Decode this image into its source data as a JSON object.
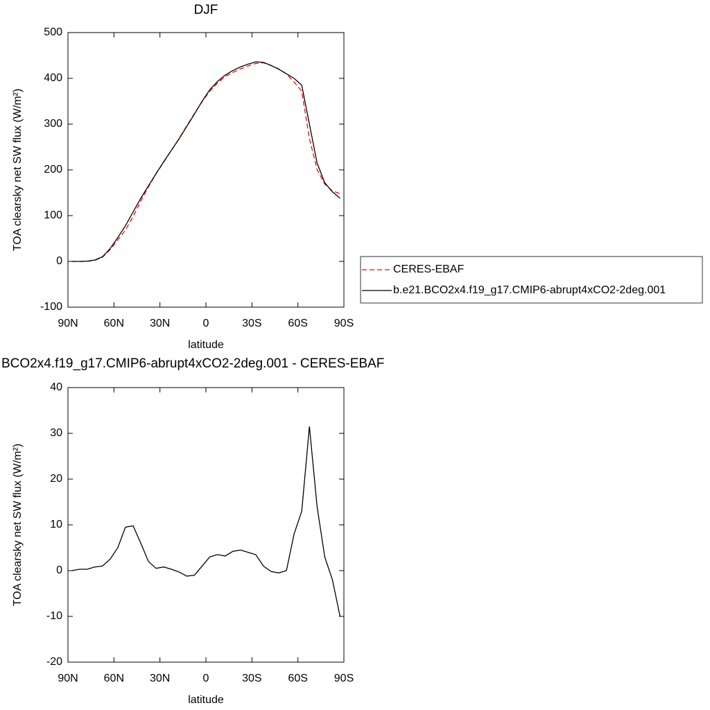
{
  "chart_data": [
    {
      "type": "line",
      "title": "DJF",
      "x_label": "latitude",
      "y_label": "TOA clearsky net SW flux (W/m²)",
      "x": [
        87.5,
        82.5,
        77.5,
        72.5,
        67.5,
        62.5,
        57.5,
        52.5,
        47.5,
        42.5,
        37.5,
        32.5,
        27.5,
        22.5,
        17.5,
        12.5,
        7.5,
        2.5,
        -2.5,
        -7.5,
        -12.5,
        -17.5,
        -22.5,
        -27.5,
        -32.5,
        -37.5,
        -42.5,
        -47.5,
        -52.5,
        -57.5,
        -62.5,
        -67.5,
        -72.5,
        -77.5,
        -82.5,
        -87.5
      ],
      "series": [
        {
          "name": "CERES-EBAF",
          "color": "#ff0000",
          "dash": true,
          "values": [
            0,
            -0.3,
            0.2,
            2.2,
            9,
            25.5,
            47,
            68.5,
            98.2,
            132,
            163,
            191.5,
            217.2,
            242.7,
            268.3,
            296.2,
            323,
            349,
            372,
            389.5,
            403.8,
            412.8,
            420.5,
            427,
            432.5,
            434,
            428.2,
            420.5,
            410,
            392,
            372,
            268.5,
            201,
            169,
            154,
            148
          ]
        },
        {
          "name": "b.e21.BCO2x4.f19_g17.CMIP6-abrupt4xCO2-2deg.001",
          "color": "#000000",
          "dash": false,
          "values": [
            0,
            0,
            0.5,
            3,
            10,
            28,
            52,
            78,
            108,
            138,
            165,
            192,
            218,
            243,
            268,
            295,
            322,
            350,
            375,
            393,
            407,
            417,
            425,
            431,
            436,
            435,
            428,
            420,
            410,
            400,
            385,
            300,
            215,
            172,
            152,
            138
          ]
        }
      ],
      "xlim": [
        90,
        -90
      ],
      "xticks": [
        {
          "value": 90,
          "label": "90N"
        },
        {
          "value": 60,
          "label": "60N"
        },
        {
          "value": 30,
          "label": "30N"
        },
        0,
        {
          "value": -30,
          "label": "30S"
        },
        {
          "value": -60,
          "label": "60S"
        },
        {
          "value": -90,
          "label": "90S"
        }
      ],
      "ylim": [
        -100,
        500
      ],
      "yticks": [
        -100,
        0,
        100,
        200,
        300,
        400,
        500
      ],
      "legend": "right"
    },
    {
      "type": "line",
      "title": "BCO2x4.f19_g17.CMIP6-abrupt4xCO2-2deg.001 - CERES-EBAF",
      "x_label": "latitude",
      "y_label": "TOA clearsky net SW flux (W/m²)",
      "x": [
        87.5,
        82.5,
        77.5,
        72.5,
        67.5,
        62.5,
        57.5,
        52.5,
        47.5,
        42.5,
        37.5,
        32.5,
        27.5,
        22.5,
        17.5,
        12.5,
        7.5,
        2.5,
        -2.5,
        -7.5,
        -12.5,
        -17.5,
        -22.5,
        -27.5,
        -32.5,
        -37.5,
        -42.5,
        -47.5,
        -52.5,
        -57.5,
        -62.5,
        -67.5,
        -72.5,
        -77.5,
        -82.5,
        -87.5
      ],
      "series": [
        {
          "color": "#000000",
          "dash": false,
          "values": [
            0,
            0.3,
            0.3,
            0.8,
            1,
            2.5,
            5,
            9.5,
            9.8,
            6,
            2,
            0.5,
            0.8,
            0.3,
            -0.3,
            -1.2,
            -1,
            1,
            3,
            3.5,
            3.2,
            4.2,
            4.5,
            4,
            3.5,
            1,
            -0.2,
            -0.5,
            0,
            8,
            13,
            31.5,
            14,
            3,
            -2,
            -10
          ]
        }
      ],
      "xlim": [
        90,
        -90
      ],
      "xticks": [
        {
          "value": 90,
          "label": "90N"
        },
        {
          "value": 60,
          "label": "60N"
        },
        {
          "value": 30,
          "label": "30N"
        },
        0,
        {
          "value": -30,
          "label": "30S"
        },
        {
          "value": -60,
          "label": "60S"
        },
        {
          "value": -90,
          "label": "90S"
        }
      ],
      "ylim": [
        -20,
        40
      ],
      "yticks": [
        -20,
        -10,
        0,
        10,
        20,
        30,
        40
      ]
    }
  ]
}
